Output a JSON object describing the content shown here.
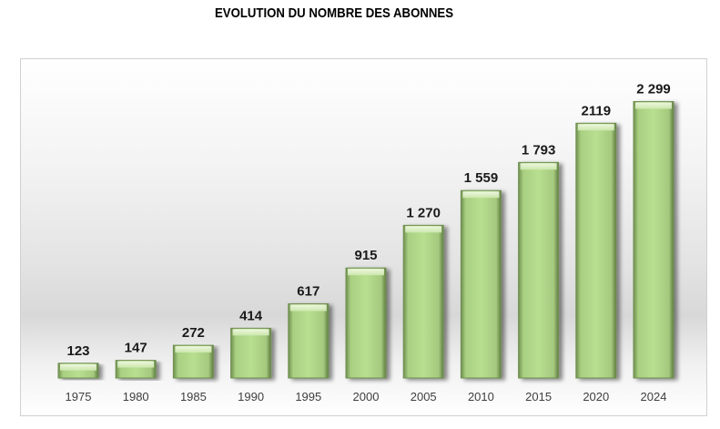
{
  "chart_data": {
    "type": "bar",
    "title": "EVOLUTION DU NOMBRE DES ABONNES",
    "xlabel": "",
    "ylabel": "",
    "categories": [
      "1975",
      "1980",
      "1985",
      "1990",
      "1995",
      "2000",
      "2005",
      "2010",
      "2015",
      "2020",
      "2024"
    ],
    "values": [
      123,
      147,
      272,
      414,
      617,
      915,
      1270,
      1559,
      1793,
      2119,
      2299
    ],
    "value_labels": [
      "123",
      "147",
      "272",
      "414",
      "617",
      "915",
      "1 270",
      "1 559",
      "1 793",
      "2119",
      "2 299"
    ],
    "ylim": [
      0,
      2500
    ],
    "grid": false,
    "legend": "none",
    "bar_color": "#b4dc8c",
    "bar_edge_color": "#6f8f4f"
  }
}
